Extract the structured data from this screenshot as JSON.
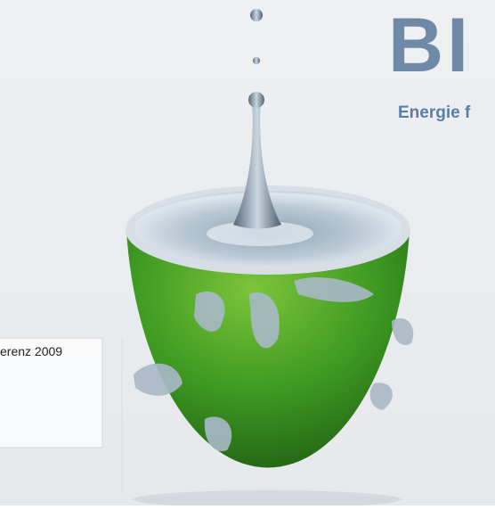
{
  "header": {
    "logo": "BI",
    "tagline": "Energie f"
  },
  "panel": {
    "text": "erenz 2009"
  }
}
